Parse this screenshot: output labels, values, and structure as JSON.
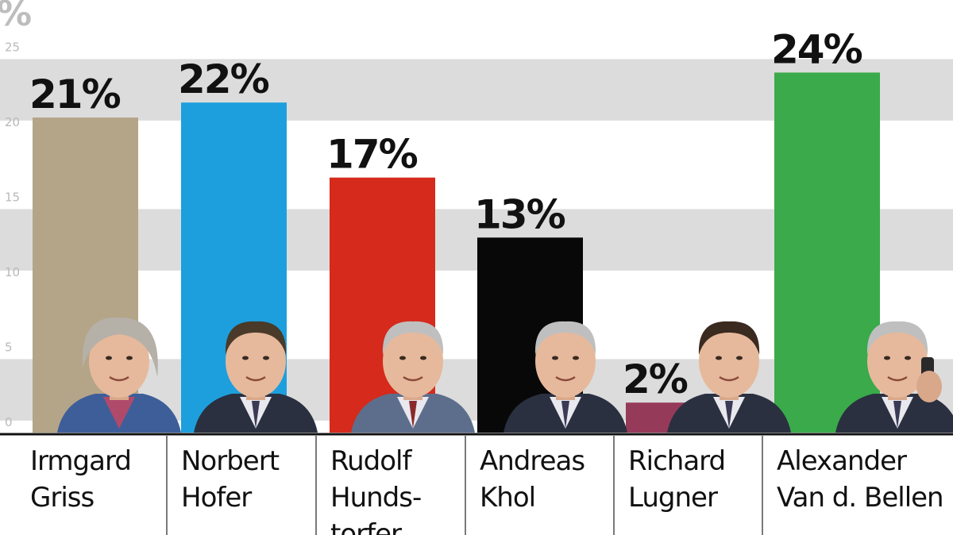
{
  "chart_data": {
    "type": "bar",
    "unit_label": "%",
    "categories": [
      [
        "Irmgard",
        "Griss"
      ],
      [
        "Norbert",
        "Hofer"
      ],
      [
        "Rudolf",
        "Hunds-",
        "torfer"
      ],
      [
        "Andreas",
        "Khol"
      ],
      [
        "Richard",
        "Lugner"
      ],
      [
        "Alexander",
        "Van d. Bellen"
      ]
    ],
    "values": [
      21,
      22,
      17,
      13,
      2,
      24
    ],
    "value_labels": [
      "21%",
      "22%",
      "17%",
      "13%",
      "2%",
      "24%"
    ],
    "colors": [
      "#b4a588",
      "#1d9fde",
      "#d52a1c",
      "#080808",
      "#963a5a",
      "#3aaa4a"
    ],
    "yticks": [
      0,
      5,
      10,
      15,
      20,
      25
    ],
    "ylim": [
      0,
      28
    ],
    "photo_icons": [
      "woman-portrait-icon",
      "man-portrait-icon",
      "man-portrait-icon",
      "man-portrait-icon",
      "man-portrait-icon",
      "man-on-phone-portrait-icon"
    ]
  }
}
